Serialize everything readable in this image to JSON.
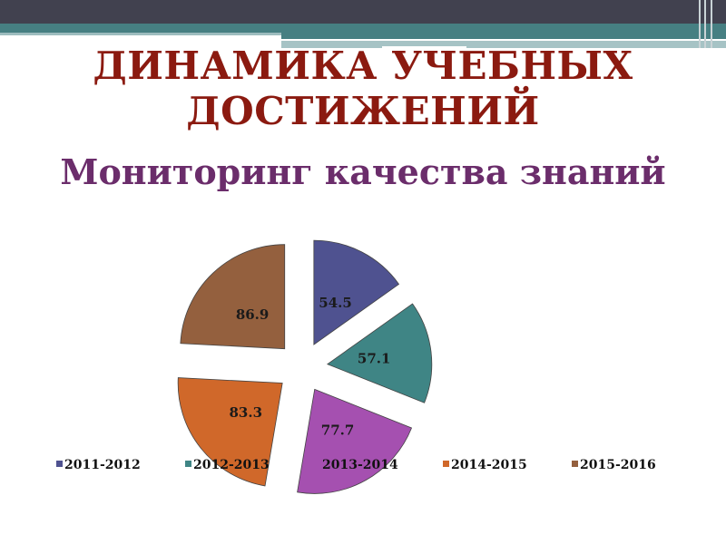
{
  "title": "ДИНАМИКА УЧЕБНЫХ ДОСТИЖЕНИЙ",
  "subtitle": "Мониторинг качества знаний",
  "chart_data": {
    "type": "pie",
    "exploded": true,
    "categories": [
      "2011-2012",
      "2012-2013",
      "2013-2014",
      "2014-2015",
      "2015-2016"
    ],
    "values": [
      54.5,
      57.1,
      77.7,
      83.3,
      86.9
    ],
    "data_labels": [
      "54.5",
      "57.1",
      "77.7",
      "83.3",
      "86.9"
    ],
    "colors": [
      "#4f5290",
      "#3f8585",
      "#a550b0",
      "#d0682a",
      "#94603e"
    ],
    "legend": "bottom"
  }
}
